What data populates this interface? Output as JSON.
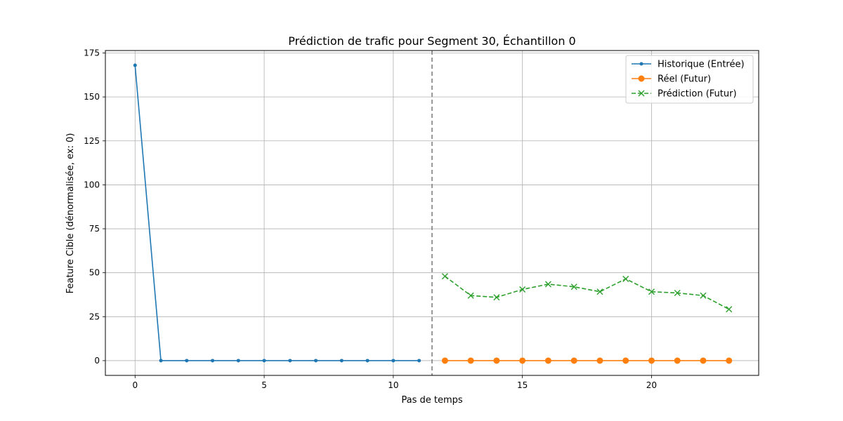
{
  "chart_data": {
    "type": "line",
    "title": "Prédiction de trafic pour Segment 30, Échantillon 0",
    "xlabel": "Pas de temps",
    "ylabel": "Feature Cible (dénormalisée, ex: 0)",
    "xlim": [
      -1.15,
      24.15
    ],
    "ylim": [
      -8.4,
      176.4
    ],
    "xticks": [
      0,
      5,
      10,
      15,
      20
    ],
    "yticks": [
      0,
      25,
      50,
      75,
      100,
      125,
      150,
      175
    ],
    "grid": true,
    "legend_position": "top-right",
    "separator_x": 11.5,
    "series": [
      {
        "name": "Historique (Entrée)",
        "style": "solid",
        "marker": "dot",
        "color": "#1f77b4",
        "x": [
          0,
          1,
          2,
          3,
          4,
          5,
          6,
          7,
          8,
          9,
          10,
          11
        ],
        "values": [
          168,
          0,
          0,
          0,
          0,
          0,
          0,
          0,
          0,
          0,
          0,
          0
        ]
      },
      {
        "name": "Réel (Futur)",
        "style": "solid",
        "marker": "circle",
        "color": "#ff7f0e",
        "x": [
          12,
          13,
          14,
          15,
          16,
          17,
          18,
          19,
          20,
          21,
          22,
          23
        ],
        "values": [
          0,
          0,
          0,
          0,
          0,
          0,
          0,
          0,
          0,
          0,
          0,
          0
        ]
      },
      {
        "name": "Prédiction (Futur)",
        "style": "dashed",
        "marker": "x",
        "color": "#2ca02c",
        "x": [
          12,
          13,
          14,
          15,
          16,
          17,
          18,
          19,
          20,
          21,
          22,
          23
        ],
        "values": [
          48,
          37,
          36,
          40.5,
          43.5,
          42,
          39.2,
          46.5,
          39.2,
          38.5,
          37,
          29.2
        ]
      }
    ]
  }
}
